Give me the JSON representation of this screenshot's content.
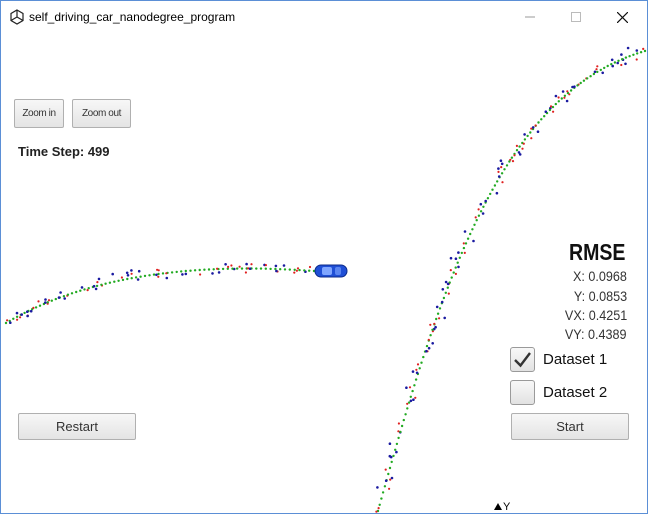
{
  "window": {
    "title": "self_driving_car_nanodegree_program",
    "icon": "unity-icon",
    "controls": [
      "minimize-icon",
      "maximize-icon",
      "close-icon"
    ]
  },
  "controls": {
    "zoom_in_label": "Zoom in",
    "zoom_out_label": "Zoom out",
    "restart_label": "Restart",
    "start_label": "Start"
  },
  "status": {
    "time_step_text": "Time Step: 499"
  },
  "rmse": {
    "title": "RMSE",
    "x": "X: 0.0968",
    "y": "Y: 0.0853",
    "vx": "VX: 0.4251",
    "vy": "VY: 0.4389"
  },
  "datasets": [
    {
      "label": "Dataset 1",
      "checked": true
    },
    {
      "label": "Dataset 2",
      "checked": false
    }
  ],
  "axis": {
    "y_label": "Y"
  },
  "colors": {
    "window_border": "#5b8fd6",
    "car": "#1f4fd6",
    "estimate_marker": "#22aa22",
    "lidar_marker": "#e02020",
    "radar_marker": "#1a1aa0"
  }
}
